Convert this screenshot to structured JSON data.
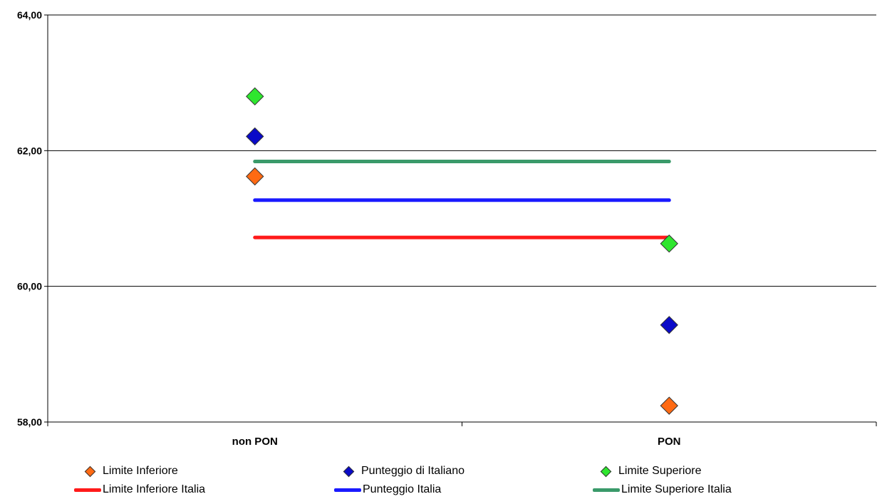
{
  "chart_data": {
    "type": "scatter",
    "title": "",
    "xlabel": "",
    "ylabel": "",
    "categories": [
      "non PON",
      "PON"
    ],
    "ylim": [
      58,
      64
    ],
    "yticks": [
      58,
      60,
      62,
      64
    ],
    "ytick_labels": [
      "58,00",
      "60,00",
      "62,00",
      "64,00"
    ],
    "grid": true,
    "legend_position": "bottom",
    "series": [
      {
        "name": "Limite Inferiore",
        "kind": "marker",
        "color": "#ff6a13",
        "values": [
          61.62,
          58.24
        ]
      },
      {
        "name": "Punteggio di Italiano",
        "kind": "marker",
        "color": "#0a0ac8",
        "values": [
          62.21,
          59.43
        ]
      },
      {
        "name": "Limite Superiore",
        "kind": "marker",
        "color": "#2ee62e",
        "values": [
          62.8,
          60.63
        ]
      },
      {
        "name": "Limite Inferiore Italia",
        "kind": "line",
        "color": "#ff1a1a",
        "values": [
          60.72,
          60.72
        ]
      },
      {
        "name": "Punteggio Italia",
        "kind": "line",
        "color": "#1a1aff",
        "values": [
          61.27,
          61.27
        ]
      },
      {
        "name": "Limite Superiore Italia",
        "kind": "line",
        "color": "#3a9a6a",
        "values": [
          61.84,
          61.84
        ]
      }
    ]
  }
}
